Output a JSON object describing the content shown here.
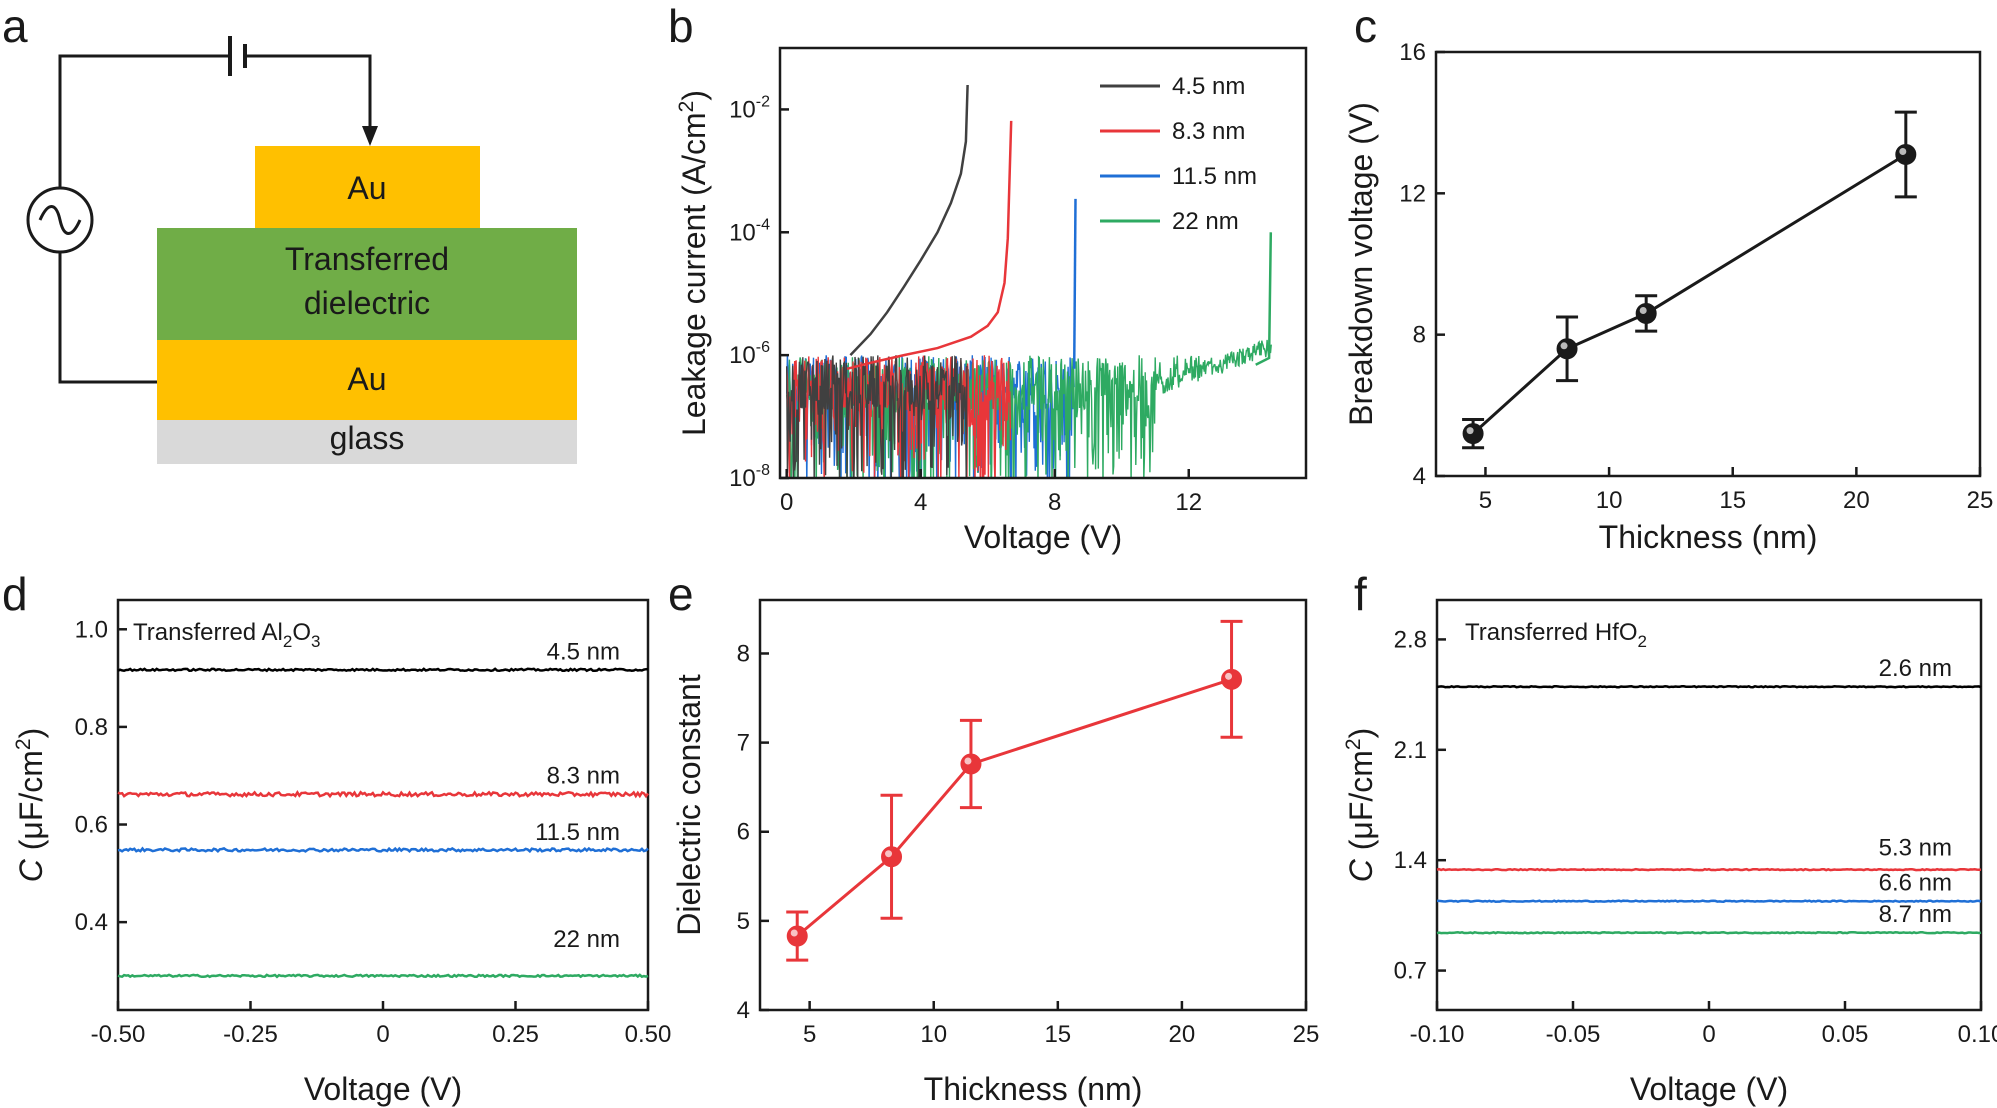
{
  "panel_labels": [
    "a",
    "b",
    "c",
    "d",
    "e",
    "f"
  ],
  "schematic": {
    "top_electrode": "Au",
    "dielectric_line1": "Transferred",
    "dielectric_line2": "dielectric",
    "bottom_electrode": "Au",
    "substrate": "glass",
    "colors": {
      "au": "#ffc000",
      "dielectric": "#70ad47",
      "glass": "#d9d9d9"
    }
  },
  "chart_data": [
    {
      "id": "b",
      "type": "line",
      "xlabel": "Voltage (V)",
      "ylabel_main": "Leakage current (A/cm",
      "ylabel_sup": "2",
      "ylabel_end": ")",
      "xlim": [
        -0.2,
        15.5
      ],
      "ylim_log10": [
        -8,
        -1
      ],
      "xticks": [
        0,
        4,
        8,
        12
      ],
      "yticks": [
        {
          "exp": -8,
          "base": "10",
          "sup": "-8"
        },
        {
          "exp": -6,
          "base": "10",
          "sup": "-6"
        },
        {
          "exp": -4,
          "base": "10",
          "sup": "-4"
        },
        {
          "exp": -2,
          "base": "10",
          "sup": "-2"
        }
      ],
      "legend_position": "top-right",
      "series": [
        {
          "name": "4.5 nm",
          "color": "#404040",
          "breakdown_v": 5.4,
          "path": [
            [
              1.9,
              1e-06
            ],
            [
              2.5,
              2.2e-06
            ],
            [
              3.0,
              5e-06
            ],
            [
              3.5,
              1.3e-05
            ],
            [
              4.0,
              3.5e-05
            ],
            [
              4.5,
              0.0001
            ],
            [
              4.9,
              0.0003
            ],
            [
              5.2,
              0.0009
            ],
            [
              5.35,
              0.003
            ],
            [
              5.4,
              0.025
            ]
          ]
        },
        {
          "name": "8.3 nm",
          "color": "#e8363a",
          "breakdown_v": 6.7,
          "path": [
            [
              1.8,
              6e-07
            ],
            [
              2.5,
              7.5e-07
            ],
            [
              3.5,
              1e-06
            ],
            [
              4.5,
              1.3e-06
            ],
            [
              5.5,
              2e-06
            ],
            [
              6.0,
              3e-06
            ],
            [
              6.3,
              5e-06
            ],
            [
              6.5,
              1.5e-05
            ],
            [
              6.6,
              8e-05
            ],
            [
              6.7,
              0.0065
            ]
          ]
        },
        {
          "name": "11.5 nm",
          "color": "#1f6fd6",
          "breakdown_v": 8.6,
          "path": [
            [
              8.58,
              6e-07
            ],
            [
              8.62,
              0.00035
            ]
          ]
        },
        {
          "name": "22 nm",
          "color": "#2eaa62",
          "breakdown_v": 14.5,
          "path": [
            [
              14.0,
              7e-07
            ],
            [
              14.4,
              9e-07
            ],
            [
              14.45,
              0.0001
            ]
          ]
        }
      ]
    },
    {
      "id": "c",
      "type": "scatter",
      "xlabel": "Thickness (nm)",
      "ylabel": "Breakdown voltage (V)",
      "xlim": [
        3,
        25
      ],
      "ylim": [
        4,
        16
      ],
      "xticks": [
        5,
        10,
        15,
        20,
        25
      ],
      "yticks": [
        4,
        8,
        12,
        16
      ],
      "color": "#1a1a1a",
      "x": [
        4.5,
        8.3,
        11.5,
        22
      ],
      "y": [
        5.2,
        7.6,
        8.6,
        13.1
      ],
      "err": [
        0.4,
        0.9,
        0.5,
        1.2
      ]
    },
    {
      "id": "d",
      "type": "line",
      "xlabel": "Voltage (V)",
      "ylabel_main": "C",
      "ylabel_rest": " (μF/cm",
      "ylabel_sup": "2",
      "ylabel_end": ")",
      "title_text": "Transferred Al",
      "title_sub1": "2",
      "title_mid": "O",
      "title_sub2": "3",
      "xlim": [
        -0.5,
        0.5
      ],
      "ylim": [
        0.22,
        1.06
      ],
      "xticks": [
        -0.5,
        -0.25,
        0,
        0.25,
        0.5
      ],
      "xtick_labels": [
        "-0.50",
        "-0.25",
        "0",
        "0.25",
        "0.50"
      ],
      "yticks": [
        0.4,
        0.6,
        0.8,
        1.0
      ],
      "ytick_labels": [
        "0.4",
        "0.6",
        "0.8",
        "1.0"
      ],
      "series": [
        {
          "name": "4.5 nm",
          "color": "#000000",
          "value": 0.917,
          "noise": 0.002,
          "label_y": 0.955
        },
        {
          "name": "8.3 nm",
          "color": "#e8363a",
          "value": 0.662,
          "noise": 0.004,
          "label_y": 0.7
        },
        {
          "name": "11.5 nm",
          "color": "#1f6fd6",
          "value": 0.548,
          "noise": 0.003,
          "label_y": 0.585
        },
        {
          "name": "22 nm",
          "color": "#2eaa62",
          "value": 0.29,
          "noise": 0.002,
          "label_y": 0.365
        }
      ]
    },
    {
      "id": "e",
      "type": "scatter",
      "xlabel": "Thickness (nm)",
      "ylabel": "Dielectric constant",
      "xlim": [
        3,
        25
      ],
      "ylim": [
        4,
        8.6
      ],
      "xticks": [
        5,
        10,
        15,
        20,
        25
      ],
      "yticks": [
        4,
        5,
        6,
        7,
        8
      ],
      "color": "#e8363a",
      "x": [
        4.5,
        8.3,
        11.5,
        22
      ],
      "y": [
        4.83,
        5.72,
        6.76,
        7.71
      ],
      "err": [
        0.27,
        0.69,
        0.49,
        0.65
      ]
    },
    {
      "id": "f",
      "type": "line",
      "xlabel": "Voltage (V)",
      "ylabel_main": "C",
      "ylabel_rest": " (μF/cm",
      "ylabel_sup": "2",
      "ylabel_end": ")",
      "title_text": "Transferred HfO",
      "title_sub1": "2",
      "xlim": [
        -0.1,
        0.1
      ],
      "ylim": [
        0.45,
        3.05
      ],
      "xticks": [
        -0.1,
        -0.05,
        0,
        0.05,
        0.1
      ],
      "xtick_labels": [
        "-0.10",
        "-0.05",
        "0",
        "0.05",
        "0.10"
      ],
      "yticks": [
        0.7,
        1.4,
        2.1,
        2.8
      ],
      "ytick_labels": [
        "0.7",
        "1.4",
        "2.1",
        "2.8"
      ],
      "series": [
        {
          "name": "2.6 nm",
          "color": "#000000",
          "value": 2.5,
          "noise": 0.003,
          "label_y": 2.62
        },
        {
          "name": "5.3 nm",
          "color": "#e8363a",
          "value": 1.34,
          "noise": 0.003,
          "label_y": 1.48
        },
        {
          "name": "6.6 nm",
          "color": "#1f6fd6",
          "value": 1.14,
          "noise": 0.003,
          "label_y": 1.26
        },
        {
          "name": "8.7 nm",
          "color": "#2eaa62",
          "value": 0.94,
          "noise": 0.003,
          "label_y": 1.06
        }
      ]
    }
  ]
}
